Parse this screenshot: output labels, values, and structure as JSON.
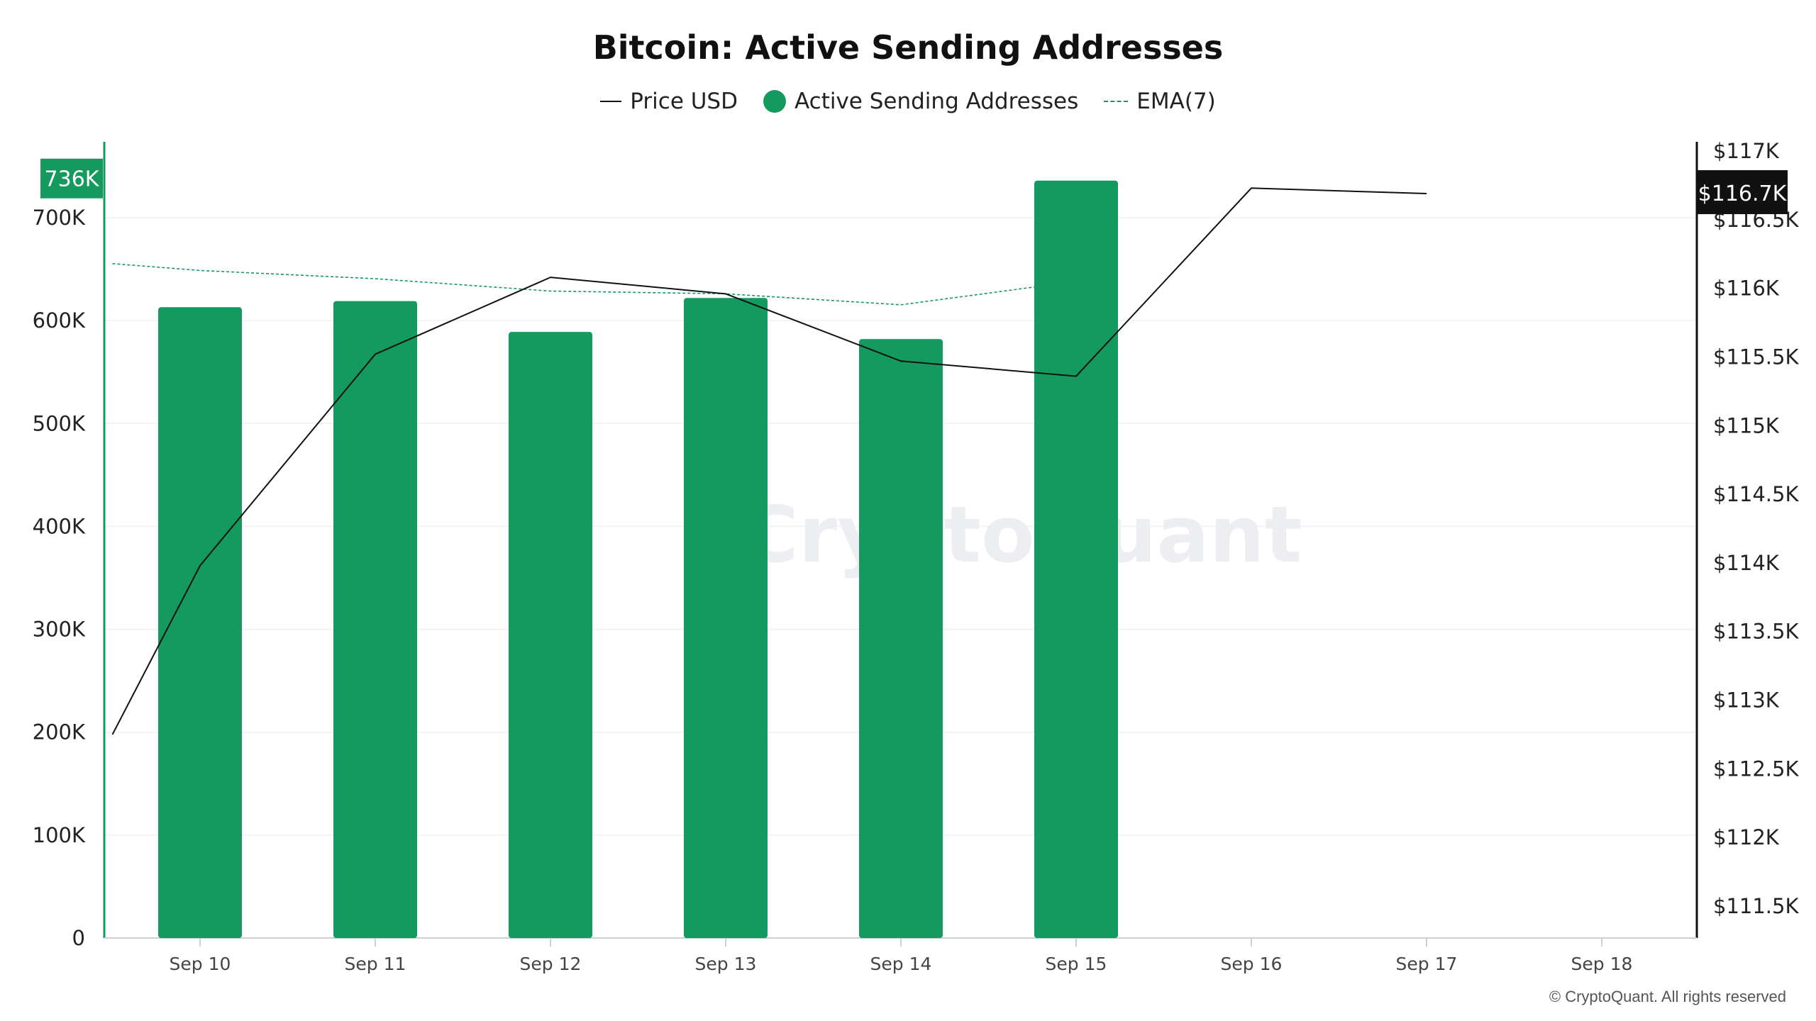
{
  "title": "Bitcoin: Active Sending Addresses",
  "legend": {
    "price": "Price USD",
    "addresses": "Active Sending Addresses",
    "ema": "EMA(7)"
  },
  "watermark": "CryptoQuant",
  "copyright": "© CryptoQuant. All rights reserved",
  "colors": {
    "bar": "#14995e",
    "price": "#111111",
    "ema": "#14995e",
    "badge_right": "#111111"
  },
  "chart_data": {
    "type": "bar",
    "categories": [
      "Sep 10",
      "Sep 11",
      "Sep 12",
      "Sep 13",
      "Sep 14",
      "Sep 15",
      "Sep 16",
      "Sep 17",
      "Sep 18"
    ],
    "series": [
      {
        "name": "Active Sending Addresses",
        "type": "bar",
        "axis": "left",
        "values": [
          613000,
          619000,
          589000,
          622000,
          582000,
          736000,
          null,
          null,
          null
        ]
      },
      {
        "name": "Price USD",
        "type": "line",
        "axis": "right",
        "x": [
          9.5,
          10,
          11,
          12,
          13,
          14,
          15,
          16,
          17
        ],
        "values": [
          112750,
          113980,
          115520,
          116080,
          115960,
          115470,
          115360,
          116730,
          116690
        ]
      },
      {
        "name": "EMA(7)",
        "type": "line",
        "axis": "right",
        "dashed": true,
        "x": [
          9.5,
          10,
          11,
          12,
          13,
          14,
          15
        ],
        "values": [
          116180,
          116130,
          116070,
          115980,
          115960,
          115880,
          116050
        ]
      }
    ],
    "y_left": {
      "ticks": [
        "0",
        "100K",
        "200K",
        "300K",
        "400K",
        "500K",
        "600K",
        "700K"
      ],
      "min": 0,
      "max": 770000
    },
    "y_right": {
      "ticks": [
        "$111.5K",
        "$112K",
        "$112.5K",
        "$113K",
        "$113.5K",
        "$114K",
        "$114.5K",
        "$115K",
        "$115.5K",
        "$116K",
        "$116.5K",
        "$117K"
      ],
      "min": 111250,
      "max": 117000
    },
    "last_value_left": "736K",
    "last_value_right": "$116.7K",
    "grid": true,
    "legend_position": "top-center"
  }
}
